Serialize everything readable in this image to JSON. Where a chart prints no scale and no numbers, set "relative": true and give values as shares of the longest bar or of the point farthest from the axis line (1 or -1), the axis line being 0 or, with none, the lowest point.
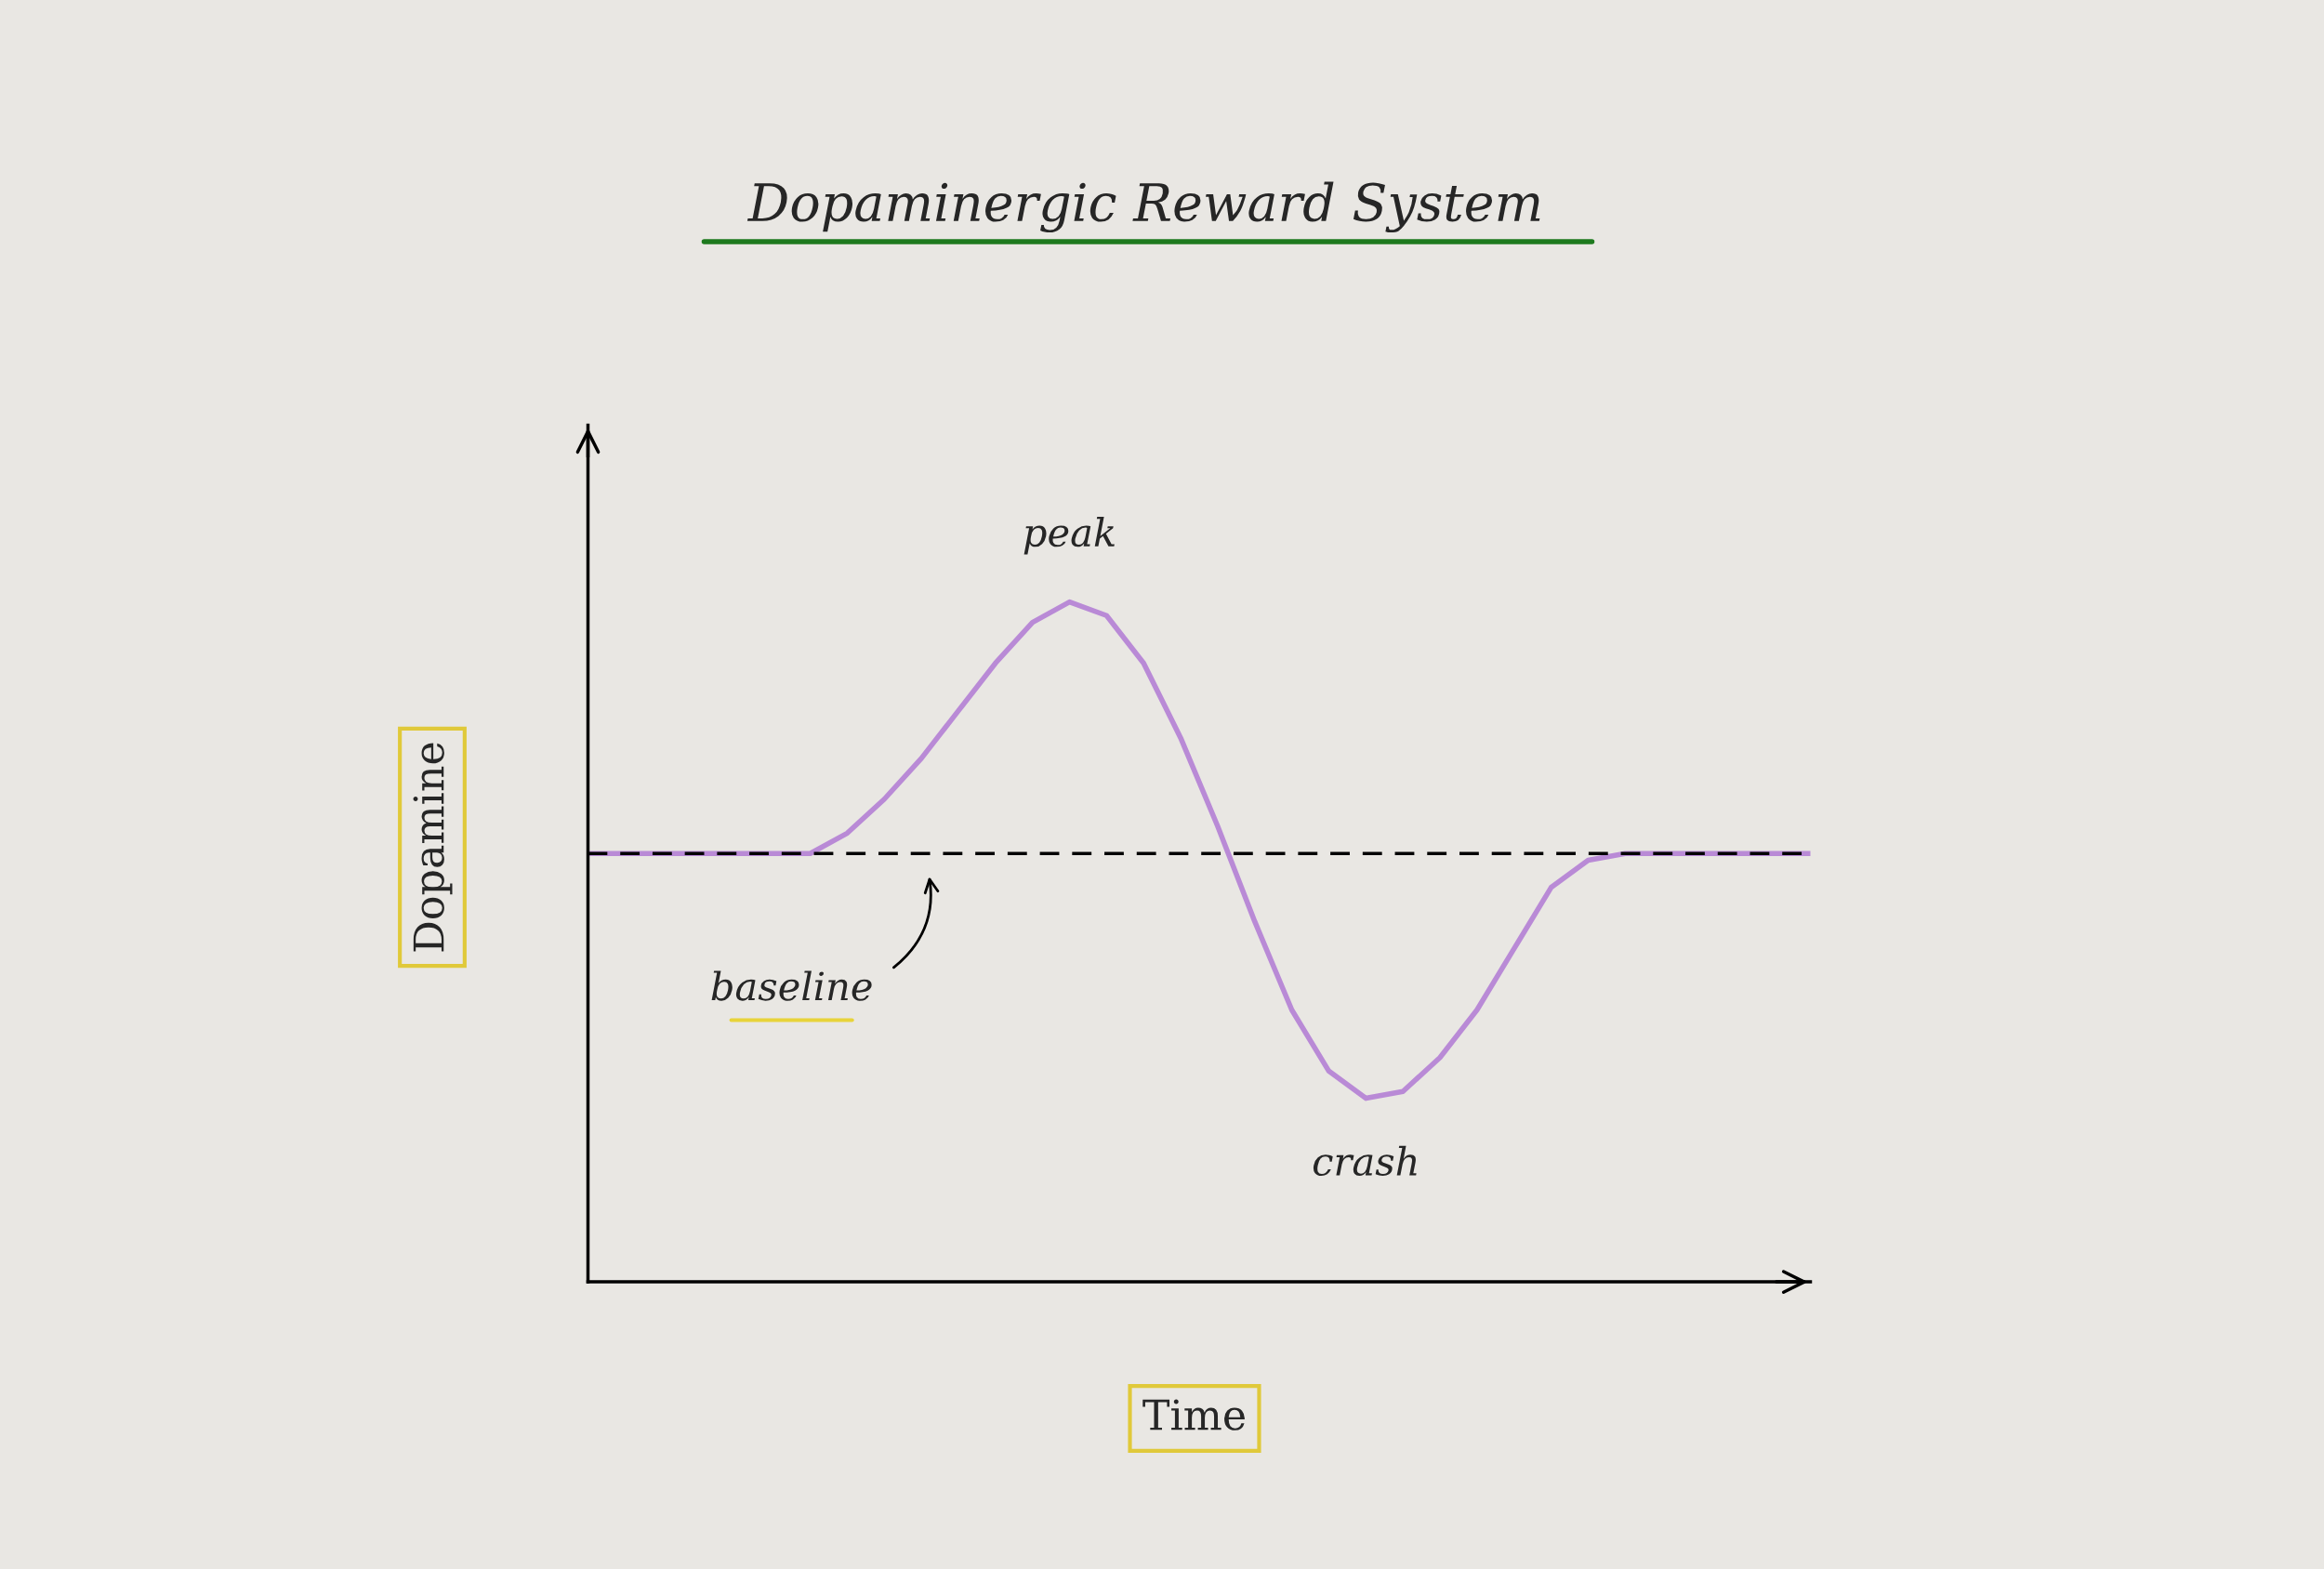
{
  "chart_data": {
    "type": "line",
    "title": "Dopaminergic Reward System",
    "xlabel": "Time",
    "ylabel": "Dopamine",
    "categories": [
      null,
      null,
      null,
      null,
      null,
      null,
      null,
      null,
      null,
      null,
      null,
      null,
      null,
      null,
      null,
      null,
      null,
      null,
      null,
      null,
      null,
      null,
      null,
      null,
      null,
      null,
      null,
      null,
      null,
      null,
      null,
      null,
      null,
      null
    ],
    "series": [
      {
        "color": "#b98ad6",
        "values": [
          0.63,
          0.63,
          0.63,
          0.63,
          0.63,
          0.63,
          0.63,
          0.66,
          0.71,
          0.77,
          0.84,
          0.91,
          0.97,
          1,
          0.98,
          0.91,
          0.8,
          0.67,
          0.53,
          0.4,
          0.31,
          0.27,
          0.28,
          0.33,
          0.4,
          0.49,
          0.58,
          0.62,
          0.63,
          0.63,
          0.63,
          0.63,
          0.63,
          0.63
        ]
      }
    ],
    "relative": true,
    "ref_lines": [
      {
        "axis": "y",
        "value": 0.63,
        "label": "baseline",
        "color": "#000000",
        "line_style": "dashed"
      }
    ],
    "annotations": [
      {
        "text": "peak",
        "y": 1
      },
      {
        "text": "crash",
        "y": 0.27
      }
    ],
    "legend": false,
    "marker": "none",
    "line_style": "solid"
  }
}
